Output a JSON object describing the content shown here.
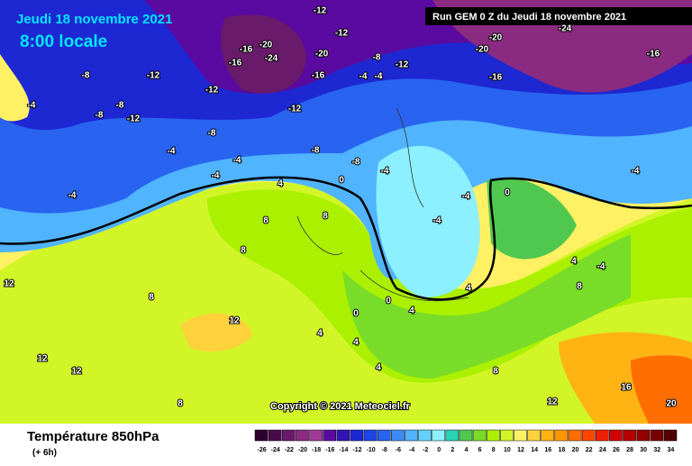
{
  "header": {
    "date": "Jeudi 18 novembre 2021",
    "time": "8:00 locale",
    "run": "Run GEM 0 Z du Jeudi 18 novembre 2021"
  },
  "copyright": "Copyright © 2021 Meteociel.fr",
  "footer": {
    "title": "Température 850hPa",
    "step": "(+ 6h)"
  },
  "contour_labels": [
    -12,
    -16,
    -20,
    -24,
    -16,
    -20,
    -12,
    -20,
    -20,
    -16,
    -24,
    -16,
    -12,
    -8,
    -12,
    -16,
    -12,
    -4,
    -4,
    -8,
    -12,
    -8,
    -12,
    -8,
    -4,
    -8,
    -4,
    -4,
    -4,
    -8,
    -8,
    -4,
    0,
    4,
    -4,
    -4,
    -4,
    0,
    -4,
    8,
    8,
    8,
    8,
    12,
    12,
    12,
    12,
    8,
    4,
    4,
    0,
    0,
    4,
    4,
    4,
    8,
    12,
    16,
    20,
    -4,
    4,
    8
  ],
  "color_scale": {
    "ticks": [
      -26,
      -24,
      -22,
      -20,
      -18,
      -16,
      -14,
      -12,
      -10,
      -8,
      -6,
      -4,
      -2,
      0,
      2,
      4,
      6,
      8,
      10,
      12,
      14,
      16,
      18,
      20,
      22,
      24,
      26,
      28,
      30,
      32,
      34
    ],
    "colors": [
      "#2d0030",
      "#4b0a4b",
      "#6a1a6a",
      "#8a2a80",
      "#a03c98",
      "#5a0aa0",
      "#3214b4",
      "#1e28d2",
      "#1e46e6",
      "#2864f0",
      "#3c8cf5",
      "#50b4ff",
      "#64d2ff",
      "#8cf0ff",
      "#28d2b4",
      "#50c850",
      "#78dc28",
      "#aaf000",
      "#d2f528",
      "#fff064",
      "#ffd23c",
      "#ffb414",
      "#ff9600",
      "#ff6e00",
      "#ff4600",
      "#f01e00",
      "#d20000",
      "#b40000",
      "#960000",
      "#780000",
      "#500000"
    ]
  }
}
